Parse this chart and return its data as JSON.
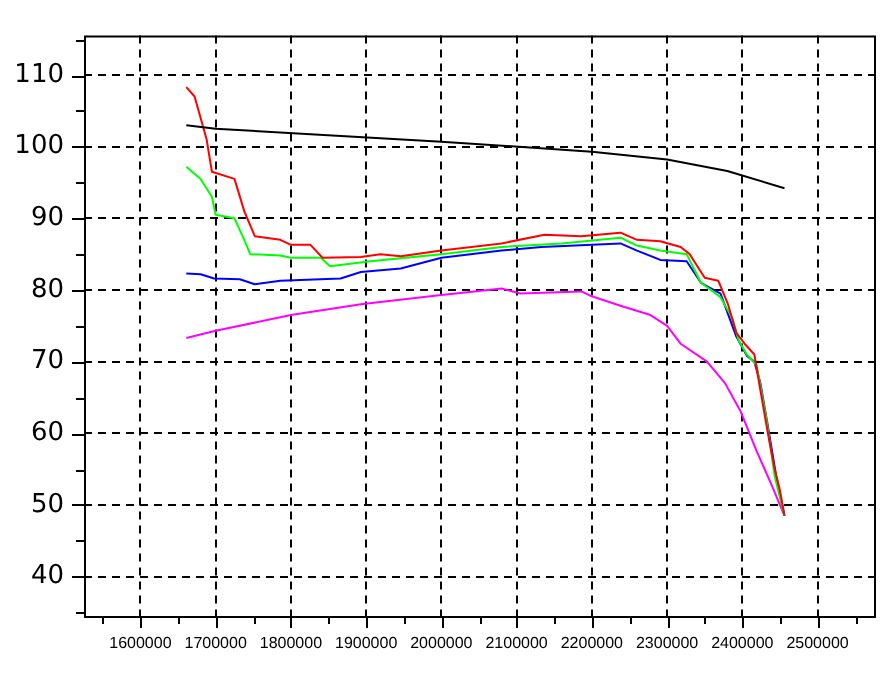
{
  "chart_data": {
    "type": "line",
    "grid": true,
    "marker": "none",
    "line_style": "solid",
    "xlim": [
      1525000,
      2575000
    ],
    "xticks": [
      {
        "value": 1550000,
        "label": null
      },
      1600000,
      {
        "value": 1650000,
        "label": null
      },
      1700000,
      {
        "value": 1750000,
        "label": null
      },
      1800000,
      {
        "value": 1850000,
        "label": null
      },
      1900000,
      {
        "value": 1950000,
        "label": null
      },
      2000000,
      {
        "value": 2050000,
        "label": null
      },
      2100000,
      {
        "value": 2150000,
        "label": null
      },
      2200000,
      {
        "value": 2250000,
        "label": null
      },
      2300000,
      {
        "value": 2350000,
        "label": null
      },
      2400000,
      {
        "value": 2450000,
        "label": null
      },
      2500000,
      {
        "value": 2550000,
        "label": null
      }
    ],
    "ylim": [
      34.5,
      115.5
    ],
    "yticks": [
      {
        "value": 35,
        "label": null
      },
      40,
      {
        "value": 45,
        "label": null
      },
      50,
      {
        "value": 55,
        "label": null
      },
      60,
      {
        "value": 65,
        "label": null
      },
      70,
      {
        "value": 75,
        "label": null
      },
      80,
      {
        "value": 85,
        "label": null
      },
      90,
      {
        "value": 95,
        "label": null
      },
      100,
      {
        "value": 105,
        "label": null
      },
      110,
      {
        "value": 115,
        "label": null
      }
    ],
    "series": [
      {
        "color": "#000000",
        "x": [
          1661000,
          1700000,
          2000000,
          2200000,
          2300000,
          2380000,
          2456000
        ],
        "values": [
          103,
          102.5,
          100.7,
          99.3,
          98.2,
          96.6,
          94.2
        ]
      },
      {
        "color": "#ff0000",
        "x": [
          1661000,
          1672000,
          1688000,
          1695000,
          1725000,
          1738000,
          1752000,
          1786000,
          1800000,
          1826000,
          1842000,
          1893000,
          1919000,
          1946000,
          2000000,
          2080000,
          2137000,
          2186000,
          2238000,
          2260000,
          2291000,
          2318000,
          2330000,
          2350000,
          2368000,
          2381000,
          2392000,
          2403000,
          2416000,
          2424000,
          2434000,
          2443000,
          2450000,
          2456000
        ],
        "values": [
          108.3,
          107,
          101,
          96.5,
          95.5,
          91,
          87.5,
          87,
          86.3,
          86.3,
          84.5,
          84.6,
          85,
          84.7,
          85.5,
          86.5,
          87.7,
          87.5,
          88,
          87,
          86.8,
          86,
          85,
          81.7,
          81.3,
          78,
          74,
          72.5,
          71,
          66,
          60,
          55,
          52,
          48.5
        ]
      },
      {
        "color": "#00ff00",
        "x": [
          1661000,
          1680000,
          1695000,
          1700000,
          1725000,
          1738000,
          1746000,
          1786000,
          1800000,
          1840000,
          1852000,
          1906000,
          2000000,
          2080000,
          2160000,
          2238000,
          2260000,
          2291000,
          2326000,
          2345000,
          2371000,
          2387000,
          2395000,
          2406000,
          2419000,
          2432000,
          2443000,
          2450000,
          2456000
        ],
        "values": [
          97.2,
          95.5,
          93,
          90.5,
          90,
          87,
          85,
          84.8,
          84.5,
          84.5,
          83.3,
          84,
          85,
          86,
          86.5,
          87.3,
          86.2,
          85.5,
          85,
          81,
          79,
          76,
          73,
          71,
          69.5,
          62,
          54,
          51,
          48.5
        ]
      },
      {
        "color": "#0000ff",
        "x": [
          1661000,
          1680000,
          1698000,
          1732000,
          1752000,
          1786000,
          1866000,
          1893000,
          1946000,
          2000000,
          2080000,
          2133000,
          2238000,
          2260000,
          2291000,
          2326000,
          2345000,
          2371000,
          2392000,
          2406000,
          2416000,
          2424000,
          2434000,
          2445000,
          2456000
        ],
        "values": [
          82.3,
          82.2,
          81.6,
          81.5,
          80.8,
          81.3,
          81.6,
          82.5,
          83,
          84.5,
          85.5,
          86,
          86.5,
          85.5,
          84.2,
          84,
          81,
          79.5,
          73.5,
          70.8,
          70,
          67,
          61,
          54,
          48.5
        ]
      },
      {
        "color": "#ff00ff",
        "x": [
          1661000,
          1700000,
          1800000,
          1893000,
          2000000,
          2044000,
          2080000,
          2105000,
          2186000,
          2198000,
          2238000,
          2278000,
          2300000,
          2318000,
          2353000,
          2377000,
          2398000,
          2419000,
          2438000,
          2456000
        ],
        "values": [
          73.3,
          74.3,
          76.5,
          78,
          79.3,
          79.8,
          80.2,
          79.5,
          79.8,
          79.2,
          77.8,
          76.5,
          75,
          72.5,
          70,
          67,
          63,
          57.5,
          53,
          48.5
        ]
      }
    ]
  }
}
